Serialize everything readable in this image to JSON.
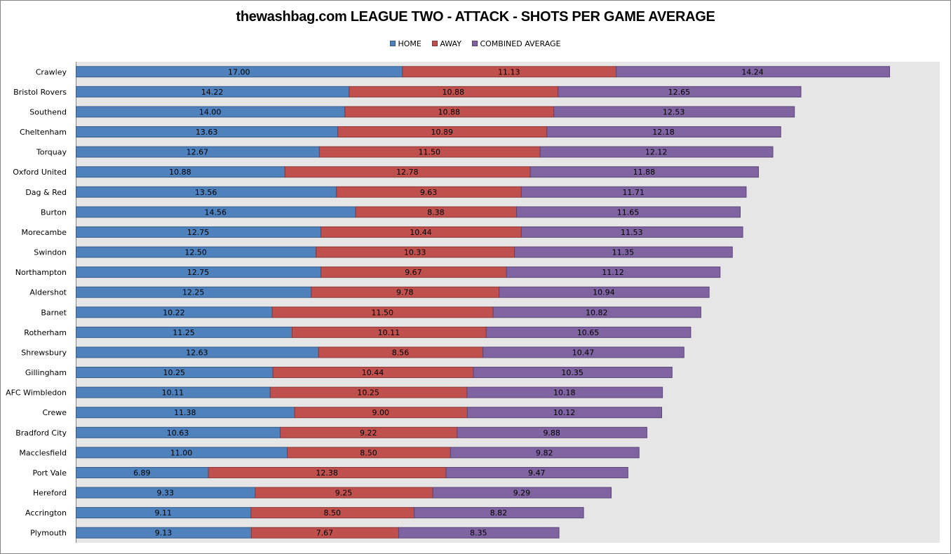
{
  "chart_data": {
    "type": "bar",
    "orientation": "horizontal",
    "stacked": true,
    "title": "thewashbag.com LEAGUE TWO - ATTACK - SHOTS PER GAME AVERAGE",
    "xlabel": "",
    "ylabel": "",
    "xlim": [
      0,
      45
    ],
    "grid": false,
    "legend_position": "top",
    "categories": [
      "Crawley",
      "Bristol Rovers",
      "Southend",
      "Cheltenham",
      "Torquay",
      "Oxford United",
      "Dag & Red",
      "Burton",
      "Morecambe",
      "Swindon",
      "Northampton",
      "Aldershot",
      "Barnet",
      "Rotherham",
      "Shrewsbury",
      "Gillingham",
      "AFC Wimbledon",
      "Crewe",
      "Bradford City",
      "Macclesfield",
      "Port Vale",
      "Hereford",
      "Accrington",
      "Plymouth"
    ],
    "series": [
      {
        "name": "HOME",
        "color": "#4F81BD",
        "border": "#385D8A",
        "values": [
          17.0,
          14.22,
          14.0,
          13.63,
          12.67,
          10.88,
          13.56,
          14.56,
          12.75,
          12.5,
          12.75,
          12.25,
          10.22,
          11.25,
          12.63,
          10.25,
          10.11,
          11.38,
          10.63,
          11.0,
          6.89,
          9.33,
          9.11,
          9.13
        ],
        "labels": [
          "17.00",
          "14.22",
          "14.00",
          "13.63",
          "12.67",
          "10.88",
          "13.56",
          "14.56",
          "12.75",
          "12.50",
          "12.75",
          "12.25",
          "10.22",
          "11.25",
          "12.63",
          "10.25",
          "10.11",
          "11.38",
          "10.63",
          "11.00",
          "6.89",
          "9.33",
          "9.11",
          "9.13"
        ]
      },
      {
        "name": "AWAY",
        "color": "#C0504D",
        "border": "#8C3836",
        "values": [
          11.13,
          10.88,
          10.88,
          10.89,
          11.5,
          12.78,
          9.63,
          8.38,
          10.44,
          10.33,
          9.67,
          9.78,
          11.5,
          10.11,
          8.56,
          10.44,
          10.25,
          9.0,
          9.22,
          8.5,
          12.38,
          9.25,
          8.5,
          7.67
        ],
        "labels": [
          "11.13",
          "10.88",
          "10.88",
          "10.89",
          "11.50",
          "12.78",
          "9.63",
          "8.38",
          "10.44",
          "10.33",
          "9.67",
          "9.78",
          "11.50",
          "10.11",
          "8.56",
          "10.44",
          "10.25",
          "9.00",
          "9.22",
          "8.50",
          "12.38",
          "9.25",
          "8.50",
          "7.67"
        ]
      },
      {
        "name": "COMBINED AVERAGE",
        "color": "#8064A2",
        "border": "#5C4776",
        "values": [
          14.24,
          12.65,
          12.53,
          12.18,
          12.12,
          11.88,
          11.71,
          11.65,
          11.53,
          11.35,
          11.12,
          10.94,
          10.82,
          10.65,
          10.47,
          10.35,
          10.18,
          10.12,
          9.88,
          9.82,
          9.47,
          9.29,
          8.82,
          8.35
        ],
        "labels": [
          "14.24",
          "12.65",
          "12.53",
          "12.18",
          "12.12",
          "11.88",
          "11.71",
          "11.65",
          "11.53",
          "11.35",
          "11.12",
          "10.94",
          "10.82",
          "10.65",
          "10.47",
          "10.35",
          "10.18",
          "10.12",
          "9.88",
          "9.82",
          "9.47",
          "9.29",
          "8.82",
          "8.35"
        ]
      }
    ],
    "plot_background": "#E6E6E6"
  }
}
